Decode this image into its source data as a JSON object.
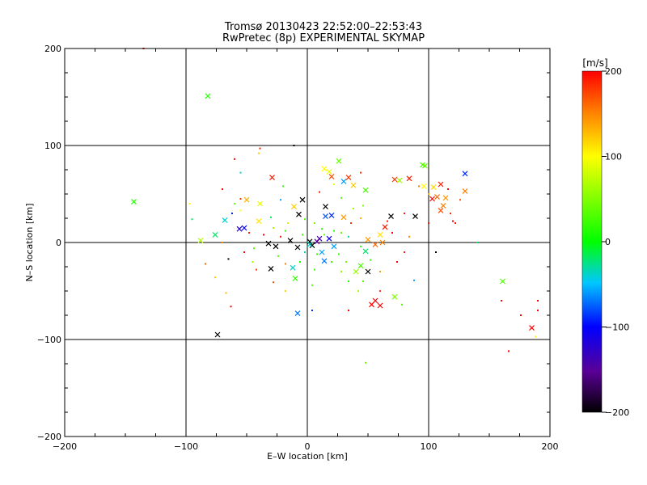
{
  "chart_data": {
    "type": "scatter",
    "title": "Tromsø 20130423 22:52:00–22:53:43",
    "subtitle": "RwPretec (8p) EXPERIMENTAL SKYMAP",
    "xlabel": "E–W location [km]",
    "ylabel": "N–S location [km]",
    "xlim": [
      -200,
      200
    ],
    "ylim": [
      -200,
      200
    ],
    "xticks": [
      -200,
      -100,
      0,
      100,
      200
    ],
    "yticks": [
      -200,
      -100,
      0,
      100,
      200
    ],
    "xtick_labels": [
      "−200",
      "−100",
      "0",
      "100",
      "200"
    ],
    "ytick_labels": [
      "−200",
      "−100",
      "0",
      "100",
      "200"
    ],
    "grid": true,
    "colorbar": {
      "label": "[m/s]",
      "range": [
        -200,
        200
      ],
      "ticks": [
        200,
        100,
        0,
        -100,
        -200
      ],
      "tick_labels": [
        "200",
        "100",
        "0",
        "−100",
        "−200"
      ],
      "colors": [
        "#000000",
        "#5a0096",
        "#0000ff",
        "#00c8ff",
        "#00ff00",
        "#ffff00",
        "#ff8000",
        "#ff0000"
      ]
    },
    "points_large": [
      {
        "x": -82,
        "y": 151,
        "v": 15
      },
      {
        "x": -143,
        "y": 42,
        "v": 15
      },
      {
        "x": -29,
        "y": 67,
        "v": 190
      },
      {
        "x": 18,
        "y": 73,
        "v": 90
      },
      {
        "x": 14,
        "y": 76,
        "v": 100
      },
      {
        "x": 26,
        "y": 84,
        "v": 40
      },
      {
        "x": 34,
        "y": 67,
        "v": 180
      },
      {
        "x": 38,
        "y": 59,
        "v": 120
      },
      {
        "x": 30,
        "y": 63,
        "v": -60
      },
      {
        "x": 20,
        "y": 68,
        "v": 170
      },
      {
        "x": 72,
        "y": 65,
        "v": 180
      },
      {
        "x": 76,
        "y": 64,
        "v": 60
      },
      {
        "x": 84,
        "y": 66,
        "v": 190
      },
      {
        "x": 95,
        "y": 80,
        "v": 25
      },
      {
        "x": 97,
        "y": 79,
        "v": 40
      },
      {
        "x": 130,
        "y": 71,
        "v": -90
      },
      {
        "x": 130,
        "y": 53,
        "v": 150
      },
      {
        "x": 104,
        "y": 57,
        "v": 115
      },
      {
        "x": 96,
        "y": 58,
        "v": 100
      },
      {
        "x": 110,
        "y": 60,
        "v": 190
      },
      {
        "x": 107,
        "y": 47,
        "v": 160
      },
      {
        "x": 114,
        "y": 46,
        "v": 140
      },
      {
        "x": 112,
        "y": 38,
        "v": 150
      },
      {
        "x": 110,
        "y": 33,
        "v": 170
      },
      {
        "x": 103,
        "y": 45,
        "v": 200
      },
      {
        "x": 89,
        "y": 27,
        "v": -200
      },
      {
        "x": 69,
        "y": 27,
        "v": -200
      },
      {
        "x": 48,
        "y": 54,
        "v": 30
      },
      {
        "x": -4,
        "y": 44,
        "v": -200
      },
      {
        "x": -11,
        "y": 37,
        "v": 120
      },
      {
        "x": -7,
        "y": 29,
        "v": -200
      },
      {
        "x": 15,
        "y": 37,
        "v": -200
      },
      {
        "x": 15,
        "y": 27,
        "v": -80
      },
      {
        "x": 20,
        "y": 28,
        "v": -90
      },
      {
        "x": 30,
        "y": 26,
        "v": 140
      },
      {
        "x": -39,
        "y": 40,
        "v": 90
      },
      {
        "x": -50,
        "y": 44,
        "v": 130
      },
      {
        "x": -68,
        "y": 23,
        "v": -40
      },
      {
        "x": -76,
        "y": 8,
        "v": -20
      },
      {
        "x": -88,
        "y": 2,
        "v": 70
      },
      {
        "x": -40,
        "y": 22,
        "v": 110
      },
      {
        "x": -52,
        "y": 15,
        "v": -100
      },
      {
        "x": -56,
        "y": 14,
        "v": -120
      },
      {
        "x": -32,
        "y": -1,
        "v": -200
      },
      {
        "x": -26,
        "y": -4,
        "v": -200
      },
      {
        "x": -14,
        "y": 2,
        "v": -200
      },
      {
        "x": -8,
        "y": -5,
        "v": -200
      },
      {
        "x": 4,
        "y": -3,
        "v": -200
      },
      {
        "x": 2,
        "y": 1,
        "v": -200
      },
      {
        "x": -30,
        "y": -27,
        "v": -200
      },
      {
        "x": -12,
        "y": -26,
        "v": -40
      },
      {
        "x": -10,
        "y": -37,
        "v": 20
      },
      {
        "x": 12,
        "y": -10,
        "v": -60
      },
      {
        "x": 14,
        "y": -19,
        "v": -70
      },
      {
        "x": 18,
        "y": 4,
        "v": -110
      },
      {
        "x": 22,
        "y": -4,
        "v": -60
      },
      {
        "x": 10,
        "y": 4,
        "v": -140
      },
      {
        "x": 40,
        "y": -30,
        "v": 60
      },
      {
        "x": 44,
        "y": -24,
        "v": 30
      },
      {
        "x": 48,
        "y": -9,
        "v": -20
      },
      {
        "x": 50,
        "y": 3,
        "v": 140
      },
      {
        "x": 56,
        "y": -2,
        "v": 160
      },
      {
        "x": 60,
        "y": 8,
        "v": 110
      },
      {
        "x": 64,
        "y": 16,
        "v": 190
      },
      {
        "x": 50,
        "y": -30,
        "v": -200
      },
      {
        "x": 56,
        "y": -60,
        "v": 200
      },
      {
        "x": 60,
        "y": -65,
        "v": 200
      },
      {
        "x": 53,
        "y": -64,
        "v": 200
      },
      {
        "x": 72,
        "y": -56,
        "v": 50
      },
      {
        "x": 62,
        "y": 0,
        "v": 150
      },
      {
        "x": -8,
        "y": -73,
        "v": -70
      },
      {
        "x": -74,
        "y": -95,
        "v": -200
      },
      {
        "x": 161,
        "y": -40,
        "v": 30
      },
      {
        "x": 185,
        "y": -88,
        "v": 200
      },
      {
        "x": 2,
        "y": -2,
        "v": -40
      },
      {
        "x": 8,
        "y": 1,
        "v": -150
      }
    ],
    "points_small": [
      {
        "x": -135,
        "y": 200,
        "v": 200
      },
      {
        "x": -11,
        "y": 100,
        "v": -200
      },
      {
        "x": -39,
        "y": 97,
        "v": 190
      },
      {
        "x": -40,
        "y": 92,
        "v": 120
      },
      {
        "x": -60,
        "y": 86,
        "v": 200
      },
      {
        "x": -70,
        "y": 55,
        "v": 200
      },
      {
        "x": -55,
        "y": 72,
        "v": -40
      },
      {
        "x": -97,
        "y": 40,
        "v": 100
      },
      {
        "x": -95,
        "y": 24,
        "v": -20
      },
      {
        "x": -63,
        "y": -66,
        "v": 200
      },
      {
        "x": -67,
        "y": -52,
        "v": 130
      },
      {
        "x": -65,
        "y": -17,
        "v": -200
      },
      {
        "x": -52,
        "y": -10,
        "v": 200
      },
      {
        "x": -45,
        "y": -20,
        "v": 60
      },
      {
        "x": -42,
        "y": -28,
        "v": 180
      },
      {
        "x": -28,
        "y": -41,
        "v": 170
      },
      {
        "x": -18,
        "y": -50,
        "v": 120
      },
      {
        "x": 4,
        "y": -70,
        "v": -90
      },
      {
        "x": 34,
        "y": -70,
        "v": 200
      },
      {
        "x": 48,
        "y": -124,
        "v": 40
      },
      {
        "x": 78,
        "y": -64,
        "v": 30
      },
      {
        "x": 88,
        "y": -39,
        "v": -60
      },
      {
        "x": 106,
        "y": -10,
        "v": -200
      },
      {
        "x": 140,
        "y": 0,
        "v": -20
      },
      {
        "x": 122,
        "y": 20,
        "v": 190
      },
      {
        "x": 120,
        "y": 22,
        "v": 200
      },
      {
        "x": 160,
        "y": -60,
        "v": 200
      },
      {
        "x": 166,
        "y": -112,
        "v": 200
      },
      {
        "x": 176,
        "y": -75,
        "v": 200
      },
      {
        "x": 190,
        "y": -60,
        "v": 200
      },
      {
        "x": 190,
        "y": -70,
        "v": 200
      },
      {
        "x": 188,
        "y": -97,
        "v": 100
      },
      {
        "x": 80,
        "y": 30,
        "v": 190
      },
      {
        "x": 70,
        "y": 10,
        "v": 200
      },
      {
        "x": 66,
        "y": 22,
        "v": 190
      },
      {
        "x": 84,
        "y": 6,
        "v": 150
      },
      {
        "x": 44,
        "y": 25,
        "v": 130
      },
      {
        "x": 38,
        "y": 35,
        "v": 60
      },
      {
        "x": 46,
        "y": 38,
        "v": 50
      },
      {
        "x": 36,
        "y": 20,
        "v": 180
      },
      {
        "x": 28,
        "y": 46,
        "v": 30
      },
      {
        "x": -20,
        "y": 58,
        "v": 20
      },
      {
        "x": -22,
        "y": 44,
        "v": -60
      },
      {
        "x": -60,
        "y": 40,
        "v": 40
      },
      {
        "x": -55,
        "y": 33,
        "v": 100
      },
      {
        "x": -62,
        "y": 30,
        "v": -90
      },
      {
        "x": -48,
        "y": 10,
        "v": 190
      },
      {
        "x": -36,
        "y": 8,
        "v": 200
      },
      {
        "x": -18,
        "y": 12,
        "v": 20
      },
      {
        "x": -22,
        "y": 6,
        "v": 190
      },
      {
        "x": -28,
        "y": 15,
        "v": 60
      },
      {
        "x": -16,
        "y": 20,
        "v": 80
      },
      {
        "x": -2,
        "y": 24,
        "v": 30
      },
      {
        "x": 6,
        "y": 20,
        "v": 50
      },
      {
        "x": 12,
        "y": 14,
        "v": 20
      },
      {
        "x": 22,
        "y": 12,
        "v": 10
      },
      {
        "x": 28,
        "y": 10,
        "v": 40
      },
      {
        "x": 34,
        "y": 6,
        "v": -30
      },
      {
        "x": -24,
        "y": -14,
        "v": 30
      },
      {
        "x": -18,
        "y": -22,
        "v": 150
      },
      {
        "x": -6,
        "y": -20,
        "v": 10
      },
      {
        "x": 6,
        "y": -28,
        "v": 20
      },
      {
        "x": 20,
        "y": -20,
        "v": 30
      },
      {
        "x": 28,
        "y": -30,
        "v": 50
      },
      {
        "x": 34,
        "y": -40,
        "v": 10
      },
      {
        "x": 46,
        "y": -40,
        "v": 30
      },
      {
        "x": 60,
        "y": -30,
        "v": 140
      },
      {
        "x": 74,
        "y": -20,
        "v": 200
      },
      {
        "x": 80,
        "y": -10,
        "v": 190
      },
      {
        "x": 60,
        "y": -50,
        "v": 180
      },
      {
        "x": 42,
        "y": -50,
        "v": 60
      },
      {
        "x": 4,
        "y": -44,
        "v": 30
      },
      {
        "x": -2,
        "y": -10,
        "v": -30
      },
      {
        "x": 8,
        "y": -12,
        "v": 20
      },
      {
        "x": -4,
        "y": 8,
        "v": 20
      },
      {
        "x": 14,
        "y": 8,
        "v": 40
      },
      {
        "x": 26,
        "y": -12,
        "v": 20
      },
      {
        "x": 32,
        "y": -20,
        "v": 40
      },
      {
        "x": 52,
        "y": -18,
        "v": 20
      },
      {
        "x": 44,
        "y": -4,
        "v": 10
      },
      {
        "x": -30,
        "y": 26,
        "v": -20
      },
      {
        "x": -44,
        "y": -6,
        "v": 30
      },
      {
        "x": -84,
        "y": -22,
        "v": 160
      },
      {
        "x": -70,
        "y": 0,
        "v": 150
      },
      {
        "x": -76,
        "y": -36,
        "v": 120
      },
      {
        "x": -55,
        "y": 45,
        "v": 180
      },
      {
        "x": 92,
        "y": 58,
        "v": 150
      },
      {
        "x": 100,
        "y": 50,
        "v": 130
      },
      {
        "x": 116,
        "y": 55,
        "v": 200
      },
      {
        "x": 118,
        "y": 30,
        "v": 180
      },
      {
        "x": 100,
        "y": 20,
        "v": 190
      },
      {
        "x": 126,
        "y": 44,
        "v": 170
      },
      {
        "x": 44,
        "y": 72,
        "v": 180
      },
      {
        "x": 22,
        "y": 60,
        "v": 90
      },
      {
        "x": 10,
        "y": 52,
        "v": 190
      }
    ]
  }
}
